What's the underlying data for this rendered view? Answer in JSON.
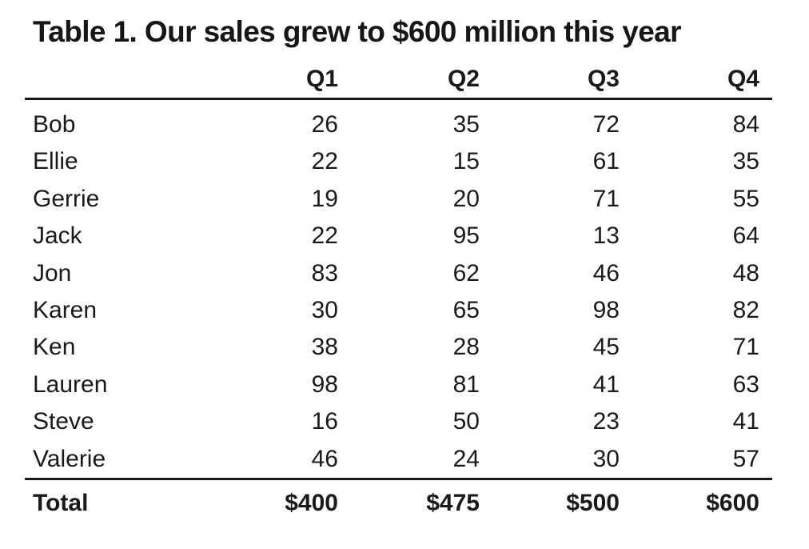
{
  "chart_data": {
    "type": "table",
    "title": "Table 1. Our sales grew to $600 million this year",
    "columns": [
      "Q1",
      "Q2",
      "Q3",
      "Q4"
    ],
    "rows": [
      {
        "name": "Bob",
        "values": [
          "26",
          "35",
          "72",
          "84"
        ]
      },
      {
        "name": "Ellie",
        "values": [
          "22",
          "15",
          "61",
          "35"
        ]
      },
      {
        "name": "Gerrie",
        "values": [
          "19",
          "20",
          "71",
          "55"
        ]
      },
      {
        "name": "Jack",
        "values": [
          "22",
          "95",
          "13",
          "64"
        ]
      },
      {
        "name": "Jon",
        "values": [
          "83",
          "62",
          "46",
          "48"
        ]
      },
      {
        "name": "Karen",
        "values": [
          "30",
          "65",
          "98",
          "82"
        ]
      },
      {
        "name": "Ken",
        "values": [
          "38",
          "28",
          "45",
          "71"
        ]
      },
      {
        "name": "Lauren",
        "values": [
          "98",
          "81",
          "41",
          "63"
        ]
      },
      {
        "name": "Steve",
        "values": [
          "16",
          "50",
          "23",
          "41"
        ]
      },
      {
        "name": "Valerie",
        "values": [
          "46",
          "24",
          "30",
          "57"
        ]
      }
    ],
    "total": {
      "label": "Total",
      "values": [
        "$400",
        "$475",
        "$500",
        "$600"
      ]
    }
  }
}
